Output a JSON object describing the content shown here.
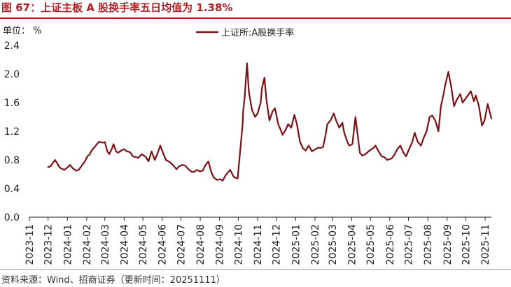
{
  "header": {
    "title": "图 67：上证主板 A 股换手率五日均值为 1.38%"
  },
  "unit_label": "单位：  %",
  "source": "资料来源：Wind、招商证券（更新时间：20251111）",
  "colors": {
    "line": "#7a0f14",
    "accent": "#b01f24"
  },
  "chart_data": {
    "type": "line",
    "title": "图 67：上证主板 A 股换手率五日均值为 1.38%",
    "ylabel": "单位：  %",
    "ylim": [
      0,
      2.4
    ],
    "yticks": [
      "0.0",
      "0.4",
      "0.8",
      "1.2",
      "1.6",
      "2.0",
      "2.4"
    ],
    "xlim": [
      "2023-11-01",
      "2025-11-11"
    ],
    "xticks": [
      "2023-11",
      "2023-12",
      "2024-01",
      "2024-02",
      "2024-03",
      "2024-04",
      "2024-05",
      "2024-06",
      "2024-07",
      "2024-08",
      "2024-09",
      "2024-10",
      "2024-11",
      "2024-12",
      "2025-01",
      "2025-02",
      "2025-03",
      "2025-04",
      "2025-05",
      "2025-06",
      "2025-07",
      "2025-08",
      "2025-09",
      "2025-10",
      "2025-11"
    ],
    "grid": false,
    "legend_position": "top-center",
    "series": [
      {
        "name": "上证所:A股换手率",
        "color": "#7a0f14",
        "x": [
          "2023-12-01",
          "2023-12-05",
          "2023-12-08",
          "2023-12-12",
          "2023-12-15",
          "2023-12-19",
          "2023-12-22",
          "2023-12-27",
          "2024-01-02",
          "2024-01-05",
          "2024-01-10",
          "2024-01-15",
          "2024-01-19",
          "2024-01-24",
          "2024-01-29",
          "2024-02-02",
          "2024-02-06",
          "2024-02-08",
          "2024-02-20",
          "2024-02-23",
          "2024-02-27",
          "2024-03-01",
          "2024-03-05",
          "2024-03-08",
          "2024-03-12",
          "2024-03-15",
          "2024-03-19",
          "2024-03-22",
          "2024-03-27",
          "2024-04-01",
          "2024-04-05",
          "2024-04-10",
          "2024-04-15",
          "2024-04-19",
          "2024-04-24",
          "2024-04-29",
          "2024-05-06",
          "2024-05-10",
          "2024-05-15",
          "2024-05-20",
          "2024-05-24",
          "2024-05-29",
          "2024-06-04",
          "2024-06-07",
          "2024-06-13",
          "2024-06-19",
          "2024-06-24",
          "2024-06-28",
          "2024-07-03",
          "2024-07-08",
          "2024-07-12",
          "2024-07-17",
          "2024-07-22",
          "2024-07-26",
          "2024-07-31",
          "2024-08-05",
          "2024-08-09",
          "2024-08-14",
          "2024-08-19",
          "2024-08-23",
          "2024-08-28",
          "2024-09-02",
          "2024-09-06",
          "2024-09-11",
          "2024-09-18",
          "2024-09-24",
          "2024-09-27",
          "2024-09-30",
          "2024-10-08",
          "2024-10-09",
          "2024-10-11",
          "2024-10-15",
          "2024-10-18",
          "2024-10-23",
          "2024-10-28",
          "2024-11-01",
          "2024-11-06",
          "2024-11-08",
          "2024-11-12",
          "2024-11-15",
          "2024-11-20",
          "2024-11-25",
          "2024-11-29",
          "2024-12-04",
          "2024-12-09",
          "2024-12-11",
          "2024-12-16",
          "2024-12-20",
          "2024-12-25",
          "2024-12-30",
          "2025-01-03",
          "2025-01-08",
          "2025-01-13",
          "2025-01-17",
          "2025-01-22",
          "2025-01-27",
          "2025-02-06",
          "2025-02-11",
          "2025-02-14",
          "2025-02-18",
          "2025-02-21",
          "2025-02-26",
          "2025-03-03",
          "2025-03-07",
          "2025-03-12",
          "2025-03-17",
          "2025-03-20",
          "2025-03-25",
          "2025-03-28",
          "2025-04-02",
          "2025-04-07",
          "2025-04-09",
          "2025-04-14",
          "2025-04-18",
          "2025-04-23",
          "2025-04-28",
          "2025-05-06",
          "2025-05-09",
          "2025-05-14",
          "2025-05-19",
          "2025-05-23",
          "2025-05-28",
          "2025-06-04",
          "2025-06-09",
          "2025-06-13",
          "2025-06-18",
          "2025-06-23",
          "2025-06-27",
          "2025-07-02",
          "2025-07-07",
          "2025-07-11",
          "2025-07-16",
          "2025-07-21",
          "2025-07-25",
          "2025-07-30",
          "2025-08-04",
          "2025-08-08",
          "2025-08-13",
          "2025-08-18",
          "2025-08-22",
          "2025-08-27",
          "2025-08-29",
          "2025-09-03",
          "2025-09-08",
          "2025-09-12",
          "2025-09-17",
          "2025-09-22",
          "2025-09-26",
          "2025-10-09",
          "2025-10-14",
          "2025-10-17",
          "2025-10-22",
          "2025-10-27",
          "2025-10-31",
          "2025-11-05",
          "2025-11-11"
        ],
        "values": [
          0.7,
          0.71,
          0.75,
          0.8,
          0.76,
          0.7,
          0.68,
          0.66,
          0.7,
          0.73,
          0.68,
          0.65,
          0.66,
          0.72,
          0.78,
          0.85,
          0.88,
          0.92,
          1.05,
          1.05,
          1.04,
          1.05,
          0.92,
          0.88,
          0.95,
          1.02,
          0.92,
          0.9,
          0.93,
          0.95,
          0.92,
          0.91,
          0.85,
          0.84,
          0.83,
          0.88,
          0.84,
          0.78,
          0.92,
          0.8,
          0.88,
          1.0,
          0.86,
          0.8,
          0.77,
          0.72,
          0.67,
          0.71,
          0.73,
          0.72,
          0.68,
          0.64,
          0.63,
          0.66,
          0.64,
          0.65,
          0.72,
          0.78,
          0.62,
          0.55,
          0.52,
          0.53,
          0.51,
          0.59,
          0.66,
          0.56,
          0.55,
          0.54,
          1.3,
          1.5,
          1.65,
          2.15,
          1.75,
          1.5,
          1.4,
          1.45,
          1.6,
          1.8,
          1.95,
          1.65,
          1.35,
          1.48,
          1.52,
          1.3,
          1.2,
          1.15,
          1.22,
          1.3,
          1.25,
          1.43,
          1.3,
          1.05,
          0.96,
          0.93,
          1.0,
          0.92,
          0.97,
          0.97,
          0.98,
          1.15,
          1.3,
          1.35,
          1.45,
          1.35,
          1.25,
          1.32,
          1.18,
          1.05,
          1.0,
          1.02,
          1.4,
          1.25,
          0.9,
          0.86,
          0.88,
          0.92,
          0.97,
          1.0,
          0.92,
          0.85,
          0.84,
          0.8,
          0.82,
          0.88,
          0.95,
          1.0,
          0.9,
          0.85,
          0.95,
          1.05,
          1.18,
          1.05,
          1.0,
          1.1,
          1.2,
          1.4,
          1.42,
          1.35,
          1.2,
          1.55,
          1.75,
          1.85,
          2.03,
          1.8,
          1.55,
          1.65,
          1.72,
          1.6,
          1.76,
          1.62,
          1.7,
          1.55,
          1.28,
          1.35,
          1.58,
          1.38
        ]
      }
    ]
  }
}
